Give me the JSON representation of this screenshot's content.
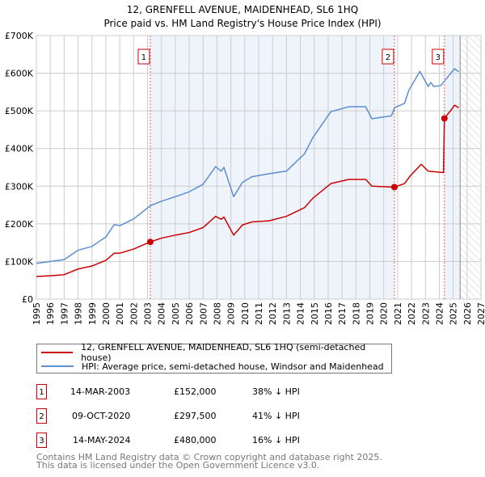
{
  "title": "12, GRENFELL AVENUE, MAIDENHEAD, SL6 1HQ",
  "subtitle": "Price paid vs. HM Land Registry's House Price Index (HPI)",
  "colors": {
    "property": "#cc0000",
    "hpi": "#5b8fd0",
    "shade": "#eef3fc"
  },
  "chart_data": {
    "type": "line",
    "title": "12, GRENFELL AVENUE, MAIDENHEAD, SL6 1HQ — Price paid vs. HM Land Registry's House Price Index (HPI)",
    "xlim": [
      1995,
      2027
    ],
    "ylim": [
      0,
      700000
    ],
    "x_ticks": [
      "1995",
      "1996",
      "1997",
      "1998",
      "1999",
      "2000",
      "2001",
      "2002",
      "2003",
      "2004",
      "2005",
      "2006",
      "2007",
      "2008",
      "2009",
      "2010",
      "2011",
      "2012",
      "2013",
      "2014",
      "2015",
      "2016",
      "2017",
      "2018",
      "2019",
      "2020",
      "2021",
      "2022",
      "2023",
      "2024",
      "2025",
      "2026",
      "2027"
    ],
    "y_ticks": [
      {
        "v": 0,
        "label": "£0"
      },
      {
        "v": 100000,
        "label": "£100K"
      },
      {
        "v": 200000,
        "label": "£200K"
      },
      {
        "v": 300000,
        "label": "£300K"
      },
      {
        "v": 400000,
        "label": "£400K"
      },
      {
        "v": 500000,
        "label": "£500K"
      },
      {
        "v": 600000,
        "label": "£600K"
      },
      {
        "v": 700000,
        "label": "£700K"
      }
    ],
    "grid": true,
    "series": [
      {
        "name": "12, GRENFELL AVENUE, MAIDENHEAD, SL6 1HQ (semi-detached house)",
        "color": "#cc0000",
        "x": [
          1995,
          1996,
          1997,
          1998,
          1999,
          2000,
          2000.6,
          2001,
          2002,
          2003.2,
          2004,
          2005,
          2006,
          2007,
          2007.9,
          2008.3,
          2008.5,
          2009.2,
          2009.83,
          2010.5,
          2011.75,
          2013,
          2014.3,
          2014.9,
          2016.2,
          2017.5,
          2018.7,
          2019.15,
          2020.77,
          2021.5,
          2021.9,
          2022.7,
          2023.2,
          2024.3,
          2024.37,
          2024.8,
          2025.1,
          2025.4
        ],
        "y": [
          60000,
          62000,
          65000,
          80000,
          88000,
          103000,
          122000,
          122000,
          133000,
          152000,
          162000,
          170000,
          177000,
          190000,
          220000,
          212000,
          218000,
          170000,
          197000,
          205000,
          208000,
          220000,
          243000,
          268000,
          307000,
          318000,
          318000,
          300000,
          297500,
          307000,
          327000,
          358000,
          340000,
          336000,
          480000,
          500000,
          515000,
          508000
        ]
      },
      {
        "name": "HPI: Average price, semi-detached house, Windsor and Maidenhead",
        "color": "#5b8fd0",
        "x": [
          1995,
          1996,
          1997,
          1998,
          1999,
          2000,
          2000.6,
          2001,
          2002,
          2003.2,
          2004,
          2005,
          2006,
          2007,
          2007.9,
          2008.3,
          2008.5,
          2009.2,
          2009.83,
          2010.5,
          2011.75,
          2013,
          2014.3,
          2014.9,
          2016.2,
          2017.5,
          2018.7,
          2019.15,
          2020.55,
          2020.8,
          2021.5,
          2021.8,
          2022.6,
          2023.2,
          2023.4,
          2023.6,
          2024.1,
          2025.1,
          2025.4
        ],
        "y": [
          95000,
          100000,
          105000,
          130000,
          140000,
          165000,
          198000,
          195000,
          213000,
          248000,
          260000,
          272000,
          285000,
          305000,
          352000,
          340000,
          350000,
          272000,
          310000,
          325000,
          333000,
          340000,
          386000,
          429000,
          498000,
          511000,
          511000,
          479000,
          487000,
          509000,
          520000,
          554000,
          605000,
          565000,
          575000,
          565000,
          567000,
          612000,
          604000
        ]
      }
    ],
    "sales": [
      {
        "id": "1",
        "x": 2003.2,
        "y": 152000
      },
      {
        "id": "2",
        "x": 2020.77,
        "y": 297500
      },
      {
        "id": "3",
        "x": 2024.37,
        "y": 480000
      }
    ],
    "data_end": 2025.5
  },
  "legend": [
    {
      "label": "12, GRENFELL AVENUE, MAIDENHEAD, SL6 1HQ (semi-detached house)",
      "color": "#cc0000"
    },
    {
      "label": "HPI: Average price, semi-detached house, Windsor and Maidenhead",
      "color": "#5b8fd0"
    }
  ],
  "table": [
    {
      "id": "1",
      "date": "14-MAR-2003",
      "price": "£152,000",
      "delta": "38% ↓ HPI"
    },
    {
      "id": "2",
      "date": "09-OCT-2020",
      "price": "£297,500",
      "delta": "41% ↓ HPI"
    },
    {
      "id": "3",
      "date": "14-MAY-2024",
      "price": "£480,000",
      "delta": "16% ↓ HPI"
    }
  ],
  "footer": [
    "Contains HM Land Registry data © Crown copyright and database right 2025.",
    "This data is licensed under the Open Government Licence v3.0."
  ]
}
